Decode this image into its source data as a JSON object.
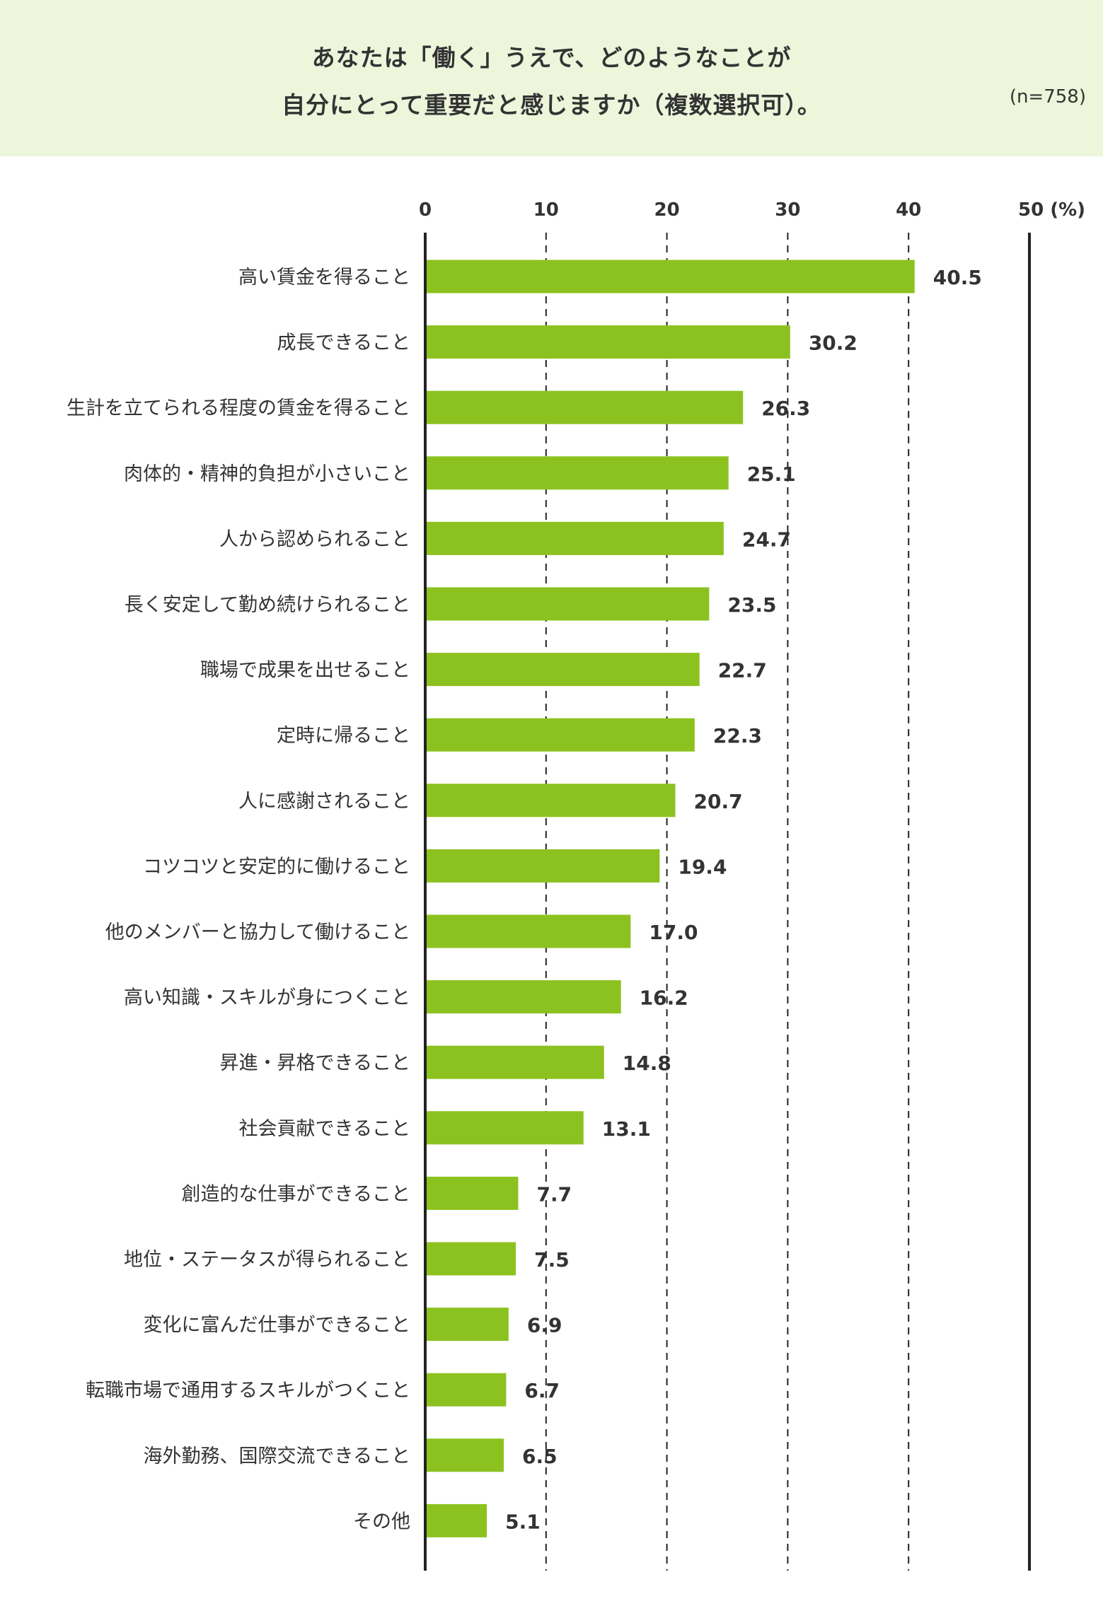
{
  "header": {
    "title_line1": "あなたは「働く」うえで、どのようなことが",
    "title_line2": "自分にとって重要だと感じますか（複数選択可）。",
    "sample_size": "(n=758)"
  },
  "colors": {
    "header_bg": "#edf5db",
    "bar": "#8cc220",
    "text": "#333333",
    "axis": "#222222"
  },
  "chart_data": {
    "type": "bar",
    "orientation": "horizontal",
    "title": "あなたは「働く」うえで、どのようなことが自分にとって重要だと感じますか（複数選択可）。",
    "xlabel": "(%)",
    "xlim": [
      0,
      50
    ],
    "xticks": [
      0,
      10,
      20,
      30,
      40,
      50
    ],
    "xtick_labels": [
      "0",
      "10",
      "20",
      "30",
      "40",
      "50 (%)"
    ],
    "grid": "dashed vertical at 10, 20, 30, 40",
    "categories": [
      "高い賃金を得ること",
      "成長できること",
      "生計を立てられる程度の賃金を得ること",
      "肉体的・精神的負担が小さいこと",
      "人から認められること",
      "長く安定して勤め続けられること",
      "職場で成果を出せること",
      "定時に帰ること",
      "人に感謝されること",
      "コツコツと安定的に働けること",
      "他のメンバーと協力して働けること",
      "高い知識・スキルが身につくこと",
      "昇進・昇格できること",
      "社会貢献できること",
      "創造的な仕事ができること",
      "地位・ステータスが得られること",
      "変化に富んだ仕事ができること",
      "転職市場で通用するスキルがつくこと",
      "海外勤務、国際交流できること",
      "その他"
    ],
    "values": [
      40.5,
      30.2,
      26.3,
      25.1,
      24.7,
      23.5,
      22.7,
      22.3,
      20.7,
      19.4,
      17.0,
      16.2,
      14.8,
      13.1,
      7.7,
      7.5,
      6.9,
      6.7,
      6.5,
      5.1
    ],
    "value_labels": [
      "40.5",
      "30.2",
      "26.3",
      "25.1",
      "24.7",
      "23.5",
      "22.7",
      "22.3",
      "20.7",
      "19.4",
      "17.0",
      "16.2",
      "14.8",
      "13.1",
      "7.7",
      "7.5",
      "6.9",
      "6.7",
      "6.5",
      "5.1"
    ]
  }
}
